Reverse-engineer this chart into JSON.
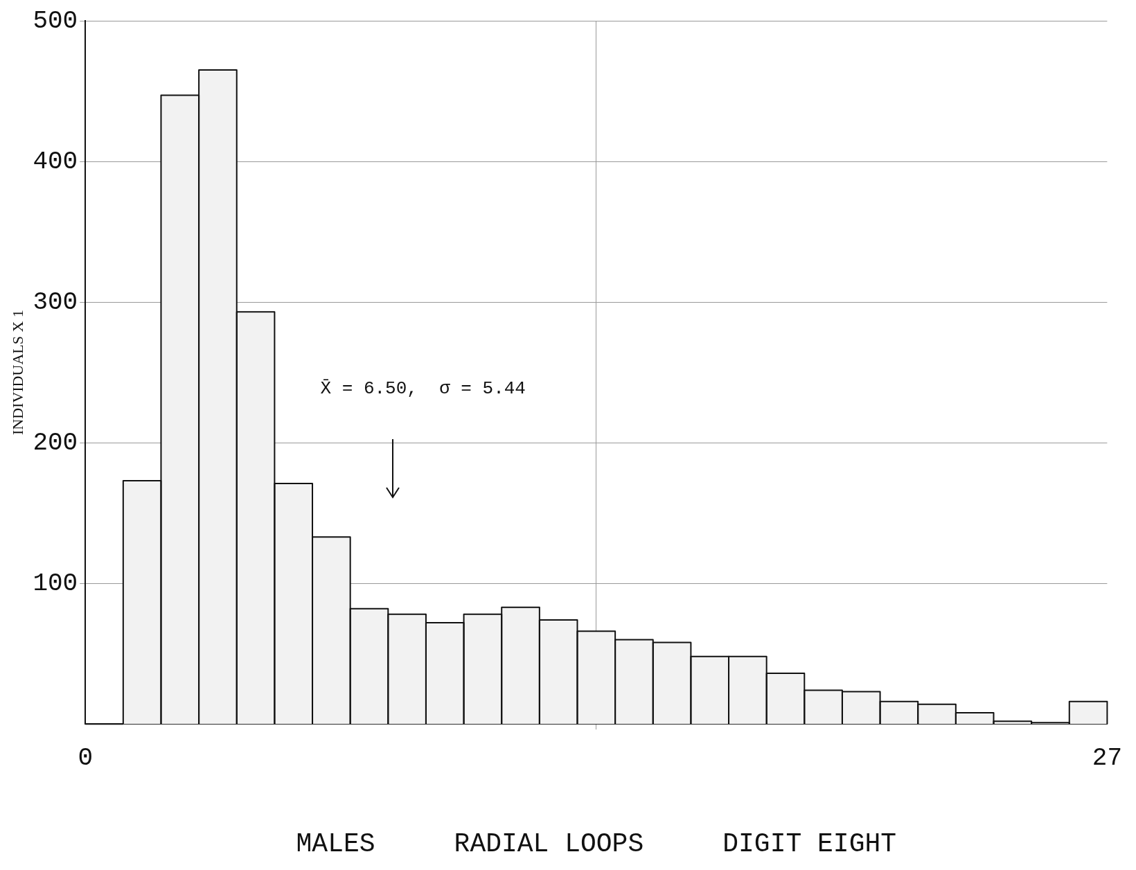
{
  "chart_data": {
    "type": "histogram",
    "xlabel": "MALES     RADIAL LOOPS     DIGIT EIGHT",
    "ylabel": "INDIVIDUALS X 1",
    "bins": [
      0,
      1,
      2,
      3,
      4,
      5,
      6,
      7,
      8,
      9,
      10,
      11,
      12,
      13,
      14,
      15,
      16,
      17,
      18,
      19,
      20,
      21,
      22,
      23,
      24,
      25,
      26,
      27
    ],
    "values": [
      0,
      173,
      447,
      465,
      293,
      171,
      133,
      82,
      78,
      72,
      78,
      83,
      74,
      66,
      60,
      58,
      48,
      48,
      36,
      24,
      23,
      16,
      14,
      8,
      2,
      1,
      16
    ],
    "color": "#f2f2f2",
    "xlim": [
      0,
      27
    ],
    "xticks": [
      0,
      27
    ],
    "ylim": [
      0,
      500
    ],
    "yticks": [
      100,
      200,
      300,
      400,
      500
    ],
    "annotations": [
      "X̄ = 6.50,  σ = 5.44"
    ],
    "grid": true,
    "legend": false
  }
}
